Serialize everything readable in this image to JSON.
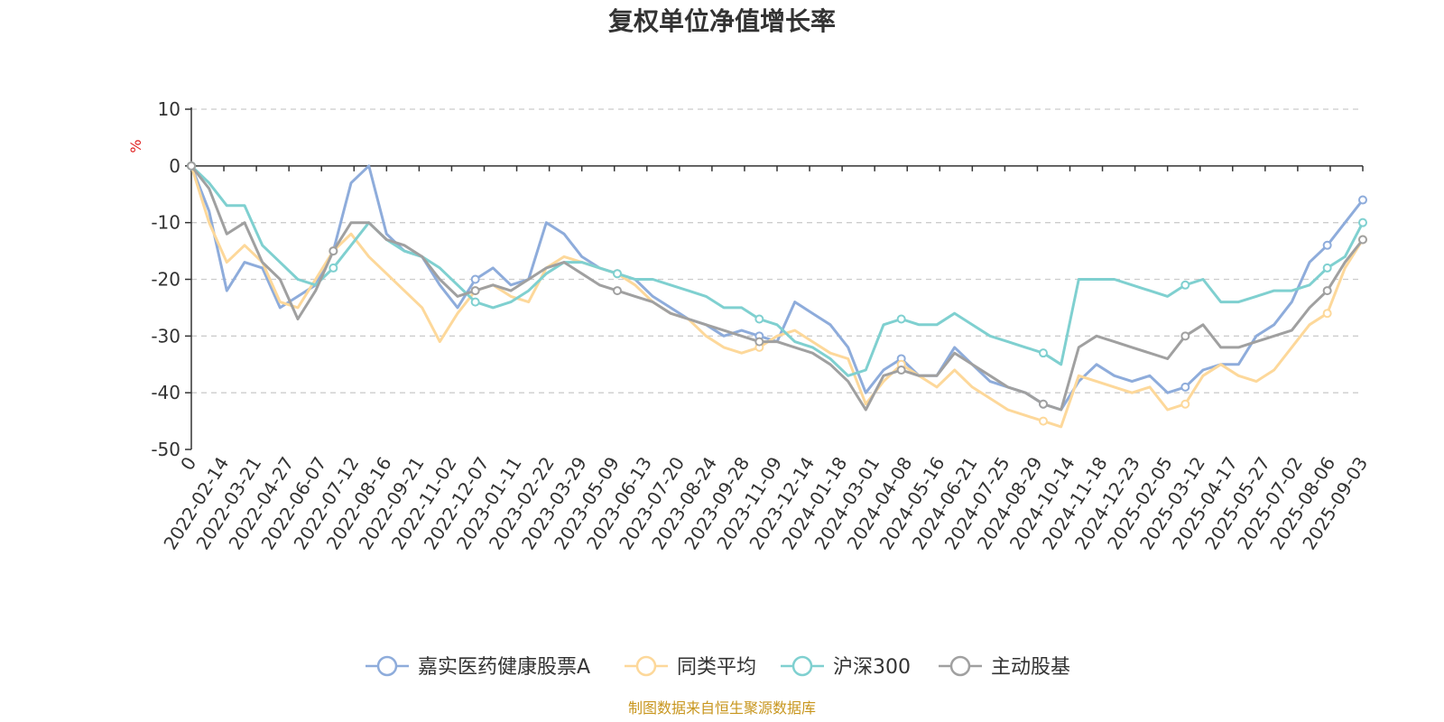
{
  "chart_data": {
    "type": "line",
    "title": "复权单位净值增长率",
    "y_unit": "%",
    "ylim": [
      -50,
      10
    ],
    "y_ticks": [
      10,
      0,
      -10,
      -20,
      -30,
      -40,
      -50
    ],
    "x_tick_labels": [
      "0",
      "2022-02-14",
      "2022-03-21",
      "2022-04-27",
      "2022-06-07",
      "2022-07-12",
      "2022-08-16",
      "2022-09-21",
      "2022-11-02",
      "2022-12-07",
      "2023-01-11",
      "2023-02-22",
      "2023-03-29",
      "2023-05-09",
      "2023-06-13",
      "2023-07-20",
      "2023-08-24",
      "2023-09-28",
      "2023-11-09",
      "2023-12-14",
      "2024-01-18",
      "2024-03-01",
      "2024-04-08",
      "2024-05-16",
      "2024-06-21",
      "2024-07-25",
      "2024-08-29",
      "2024-10-14",
      "2024-11-18",
      "2024-12-23",
      "2025-02-05",
      "2025-03-12",
      "2025-04-17",
      "2025-05-27",
      "2025-07-02",
      "2025-08-06",
      "2025-09-03"
    ],
    "grid": "horizontal-dashed",
    "legend_position": "bottom",
    "series": [
      {
        "name": "嘉实医药健康股票A",
        "color": "#8eacdb",
        "values": [
          0,
          -8,
          -22,
          -17,
          -18,
          -25,
          -23,
          -21,
          -15,
          -3,
          0,
          -12,
          -15,
          -16,
          -21,
          -25,
          -20,
          -18,
          -21,
          -20,
          -10,
          -12,
          -16,
          -18,
          -19,
          -20,
          -23,
          -25,
          -27,
          -28,
          -30,
          -29,
          -30,
          -31,
          -24,
          -26,
          -28,
          -32,
          -40,
          -36,
          -34,
          -37,
          -37,
          -32,
          -35,
          -38,
          -39,
          -40,
          -42,
          -43,
          -38,
          -35,
          -37,
          -38,
          -37,
          -40,
          -39,
          -36,
          -35,
          -35,
          -30,
          -28,
          -24,
          -17,
          -14,
          -10,
          -6
        ]
      },
      {
        "name": "同类平均",
        "color": "#fdd89a",
        "values": [
          0,
          -10,
          -17,
          -14,
          -17,
          -24,
          -25,
          -20,
          -15,
          -12,
          -16,
          -19,
          -22,
          -25,
          -31,
          -26,
          -22,
          -21,
          -23,
          -24,
          -18,
          -16,
          -17,
          -18,
          -19,
          -21,
          -24,
          -26,
          -27,
          -30,
          -32,
          -33,
          -32,
          -30,
          -29,
          -31,
          -33,
          -34,
          -42,
          -38,
          -35,
          -37,
          -39,
          -36,
          -39,
          -41,
          -43,
          -44,
          -45,
          -46,
          -37,
          -38,
          -39,
          -40,
          -39,
          -43,
          -42,
          -37,
          -35,
          -37,
          -38,
          -36,
          -32,
          -28,
          -26,
          -18,
          -13
        ]
      },
      {
        "name": "沪深300",
        "color": "#7fd0d0",
        "values": [
          0,
          -3,
          -7,
          -7,
          -14,
          -17,
          -20,
          -21,
          -18,
          -14,
          -10,
          -13,
          -15,
          -16,
          -18,
          -21,
          -24,
          -25,
          -24,
          -22,
          -19,
          -17,
          -17,
          -18,
          -19,
          -20,
          -20,
          -21,
          -22,
          -23,
          -25,
          -25,
          -27,
          -28,
          -31,
          -32,
          -34,
          -37,
          -36,
          -28,
          -27,
          -28,
          -28,
          -26,
          -28,
          -30,
          -31,
          -32,
          -33,
          -35,
          -20,
          -20,
          -20,
          -21,
          -22,
          -23,
          -21,
          -20,
          -24,
          -24,
          -23,
          -22,
          -22,
          -21,
          -18,
          -16,
          -10
        ]
      },
      {
        "name": "主动股基",
        "color": "#a0a0a0",
        "values": [
          0,
          -4,
          -12,
          -10,
          -17,
          -20,
          -27,
          -22,
          -15,
          -10,
          -10,
          -13,
          -14,
          -16,
          -20,
          -23,
          -22,
          -21,
          -22,
          -20,
          -18,
          -17,
          -19,
          -21,
          -22,
          -23,
          -24,
          -26,
          -27,
          -28,
          -29,
          -30,
          -31,
          -31,
          -32,
          -33,
          -35,
          -38,
          -43,
          -37,
          -36,
          -37,
          -37,
          -33,
          -35,
          -37,
          -39,
          -40,
          -42,
          -43,
          -32,
          -30,
          -31,
          -32,
          -33,
          -34,
          -30,
          -28,
          -32,
          -32,
          -31,
          -30,
          -29,
          -25,
          -22,
          -17,
          -13
        ]
      }
    ]
  },
  "source_note": "制图数据来自恒生聚源数据库"
}
